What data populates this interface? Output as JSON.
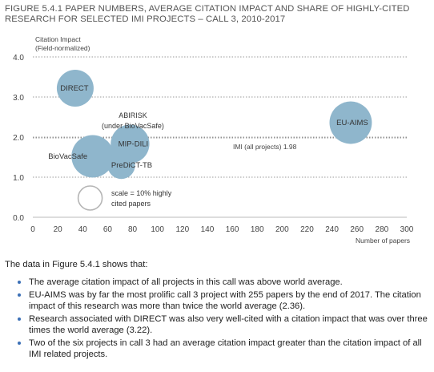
{
  "figure": {
    "title_line1": "FIGURE 5.4.1 PAPER NUMBERS, AVERAGE CITATION IMPACT AND SHARE OF HIGHLY-CITED",
    "title_line2": "RESEARCH FOR SELECTED IMI PROJECTS – CALL 3, 2010-2017"
  },
  "chart_data": {
    "type": "scatter",
    "variant": "bubble",
    "ylabel_line1": "Citation Impact",
    "ylabel_line2": "(Field-normalized)",
    "xlabel": "Number of papers",
    "xlim": [
      0,
      300
    ],
    "ylim": [
      0,
      4
    ],
    "xticks": [
      0,
      20,
      40,
      60,
      80,
      100,
      120,
      140,
      160,
      180,
      200,
      220,
      240,
      260,
      280,
      300
    ],
    "yticks": [
      "0.0",
      "1.0",
      "2.0",
      "3.0",
      "4.0"
    ],
    "ytick_values": [
      0,
      1,
      2,
      3,
      4
    ],
    "grid": "horizontal dotted",
    "bubble_color": "#8fb6cc",
    "points": [
      {
        "name": "DIRECT",
        "x": 34,
        "y": 3.22,
        "size": 1.0
      },
      {
        "name": "BioVacSafe",
        "x": 48,
        "y": 1.52,
        "size": 1.15
      },
      {
        "name": "MIP-DILI",
        "x": 78,
        "y": 1.83,
        "size": 1.05
      },
      {
        "name": "PreDiCT-TB",
        "x": 71,
        "y": 1.3,
        "size": 0.75
      },
      {
        "name": "EU-AIMS",
        "x": 255,
        "y": 2.36,
        "size": 1.15
      }
    ],
    "annotations": [
      {
        "text_line1": "ABIRISK",
        "text_line2": "(under BioVacSafe)"
      }
    ],
    "reference_line": {
      "label": "IMI (all projects) 1.98",
      "y": 1.98
    },
    "scale_legend": {
      "text_line1": "scale = 10% highly",
      "text_line2": "cited papers",
      "x": 46,
      "y": 0.48
    }
  },
  "text": {
    "intro": "The data in Figure 5.4.1 shows that:",
    "bullets": [
      "The average citation impact of all projects in this call was above world average.",
      "EU-AIMS was by far the most prolific call 3 project with 255 papers by the end of 2017. The citation impact of this research was more than twice the world average (2.36).",
      "Research associated with DIRECT was also very well-cited with a citation impact that was over three times the world average (3.22).",
      "Two of the six projects in call 3 had an average citation impact greater than the citation impact of all IMI related projects."
    ]
  }
}
